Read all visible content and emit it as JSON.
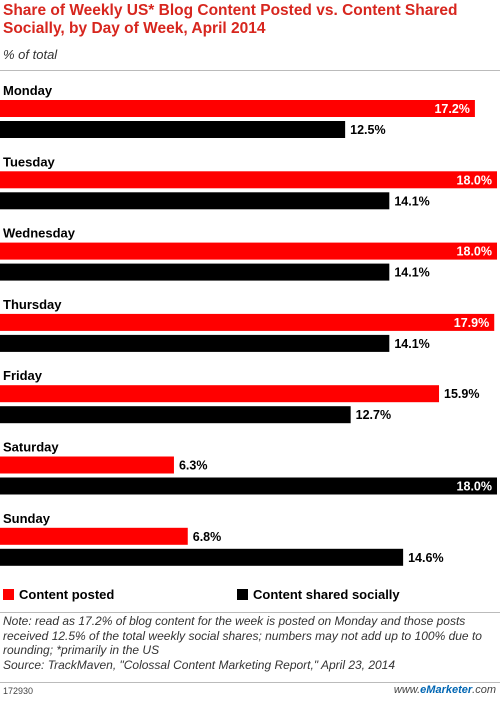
{
  "header": {
    "title": "Share of Weekly US* Blog Content Posted vs. Content Shared Socially, by Day of Week, April 2014",
    "subtitle": "% of total"
  },
  "legend": {
    "posted_label": "Content posted",
    "shared_label": "Content shared socially"
  },
  "colors": {
    "posted": "#ff0000",
    "shared": "#000000"
  },
  "note": "Note: read as 17.2% of blog content for the week is posted on Monday and those posts received 12.5% of the total weekly social shares; numbers may not add up to 100% due to rounding; *primarily in the US",
  "source": "Source: TrackMaven, \"Colossal Content Marketing Report,\" April 23, 2014",
  "chart_id": "172930",
  "brand": {
    "prefix": "www.",
    "name": "eMarketer",
    "suffix": ".com"
  },
  "chart_data": {
    "type": "bar",
    "orientation": "horizontal",
    "categories": [
      "Monday",
      "Tuesday",
      "Wednesday",
      "Thursday",
      "Friday",
      "Saturday",
      "Sunday"
    ],
    "series": [
      {
        "name": "Content posted",
        "values": [
          17.2,
          18.0,
          18.0,
          17.9,
          15.9,
          6.3,
          6.8
        ],
        "labels": [
          "17.2%",
          "18.0%",
          "18.0%",
          "17.9%",
          "15.9%",
          "6.3%",
          "6.8%"
        ]
      },
      {
        "name": "Content shared socially",
        "values": [
          12.5,
          14.1,
          14.1,
          14.1,
          12.7,
          18.0,
          14.6
        ],
        "labels": [
          "12.5%",
          "14.1%",
          "14.1%",
          "14.1%",
          "12.7%",
          "18.0%",
          "14.6%"
        ]
      }
    ],
    "xlim": [
      0,
      18
    ],
    "legend_position": "bottom",
    "grid": false
  }
}
